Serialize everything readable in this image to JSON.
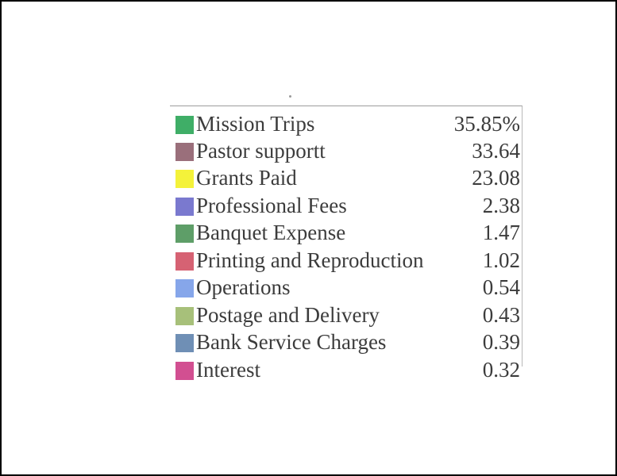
{
  "legend": {
    "items": [
      {
        "label": "Mission Trips",
        "value": "35.85%",
        "color": "#3fae67"
      },
      {
        "label": "Pastor supportt",
        "value": "33.64",
        "color": "#9a6f7b"
      },
      {
        "label": "Grants Paid",
        "value": "23.08",
        "color": "#f4f23a"
      },
      {
        "label": "Professional Fees",
        "value": "2.38",
        "color": "#7a79cf"
      },
      {
        "label": "Banquet Expense",
        "value": "1.47",
        "color": "#5e9e68"
      },
      {
        "label": "Printing and Reproduction",
        "value": "1.02",
        "color": "#d66273"
      },
      {
        "label": "Operations",
        "value": "0.54",
        "color": "#86a6ea"
      },
      {
        "label": "Postage and Delivery",
        "value": "0.43",
        "color": "#a7c07a"
      },
      {
        "label": "Bank Service Charges",
        "value": "0.39",
        "color": "#6f8fb5"
      },
      {
        "label": "Interest",
        "value": "0.32",
        "color": "#d24f91"
      }
    ]
  }
}
